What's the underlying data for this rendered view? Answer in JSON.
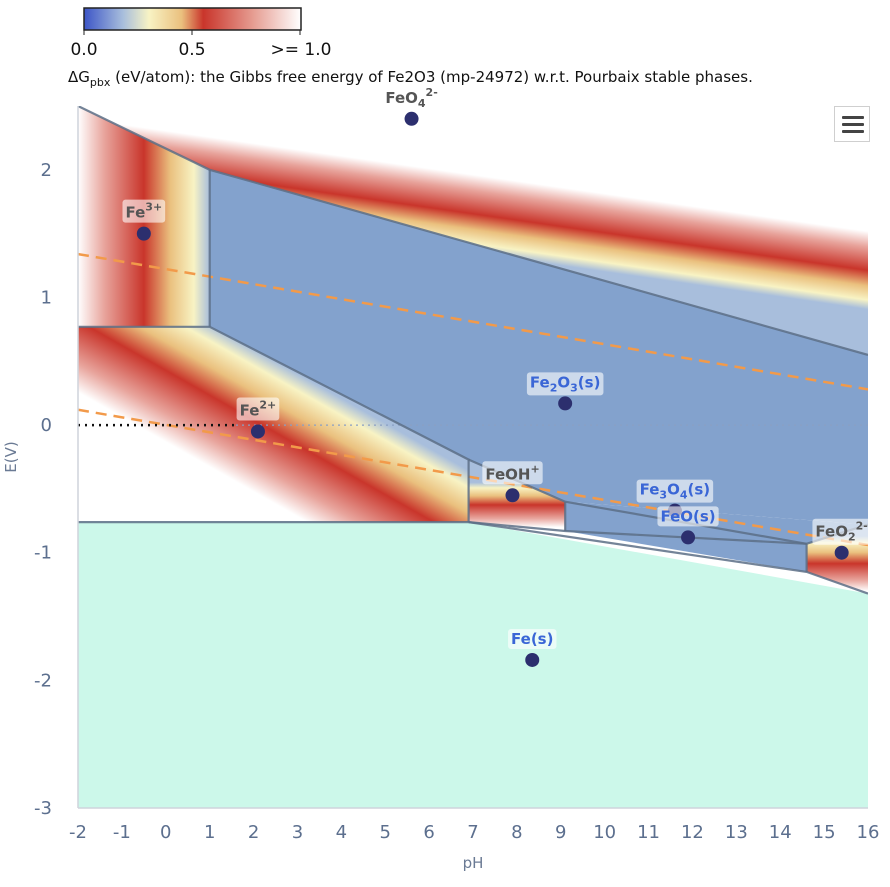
{
  "colorbar": {
    "ticks": [
      "0.0",
      "0.5",
      ">= 1.0"
    ],
    "caption_prefix": "ΔG",
    "caption_sub": "pbx",
    "caption_rest": " (eV/atom): the Gibbs free energy of Fe2O3 (mp-24972) w.r.t. Pourbaix stable phases."
  },
  "colors": {
    "stable_region": "#7f9fcb",
    "fe_metal_region": "#ccf8ea",
    "boundary": "#5c6e86",
    "water_line": "#f29a4a",
    "marker": "#2c2f6e",
    "solid_label": "#3a66d6",
    "ion_label": "#555555"
  },
  "chart_data": {
    "type": "heatmap",
    "xlabel": "pH",
    "ylabel": "E(V)",
    "xlim": [
      -2,
      16
    ],
    "ylim": [
      -3,
      2.5
    ],
    "xticks": [
      -2,
      -1,
      0,
      1,
      2,
      3,
      4,
      5,
      6,
      7,
      8,
      9,
      10,
      11,
      12,
      13,
      14,
      15,
      16
    ],
    "yticks": [
      -3,
      -2,
      -1,
      0,
      1,
      2
    ],
    "colorbar_range": [
      0,
      1
    ],
    "domains": [
      {
        "name": "Fe3+",
        "base": "Fe",
        "sup": "3+",
        "sub": "",
        "solid": false,
        "label": [
          -0.5,
          1.5
        ],
        "vertices": [
          [
            -2,
            2.5
          ],
          [
            1,
            2.0
          ],
          [
            1,
            0.77
          ],
          [
            -2,
            0.77
          ]
        ]
      },
      {
        "name": "FeO4 2-",
        "base": "FeO",
        "sub": "4",
        "sup": "2-",
        "solid": false,
        "label": [
          5.6,
          2.4
        ],
        "vertices": [
          [
            -2,
            2.5
          ],
          [
            16,
            2.5
          ],
          [
            16,
            0.55
          ],
          [
            1,
            2.0
          ]
        ]
      },
      {
        "name": "Fe2O3(s)",
        "base": "Fe",
        "sub": "2",
        "rest": "O",
        "sub2": "3",
        "tail": "(s)",
        "solid": true,
        "label": [
          9.1,
          0.17
        ],
        "vertices": [
          [
            1,
            2.0
          ],
          [
            16,
            0.55
          ],
          [
            16,
            -0.78
          ],
          [
            9.1,
            -0.6
          ],
          [
            6.9,
            -0.27
          ],
          [
            1,
            0.77
          ]
        ]
      },
      {
        "name": "Fe2+",
        "base": "Fe",
        "sup": "2+",
        "sub": "",
        "solid": false,
        "label": [
          2.1,
          -0.05
        ],
        "vertices": [
          [
            -2,
            0.77
          ],
          [
            1,
            0.77
          ],
          [
            6.9,
            -0.27
          ],
          [
            6.9,
            -0.76
          ],
          [
            -2,
            -0.76
          ]
        ]
      },
      {
        "name": "FeOH+",
        "base": "FeOH",
        "sup": "+",
        "sub": "",
        "solid": false,
        "label": [
          7.9,
          -0.55
        ],
        "vertices": [
          [
            6.9,
            -0.27
          ],
          [
            9.1,
            -0.6
          ],
          [
            9.1,
            -0.83
          ],
          [
            6.9,
            -0.76
          ]
        ]
      },
      {
        "name": "Fe3O4(s)",
        "base": "Fe",
        "sub": "3",
        "rest": "O",
        "sub2": "4",
        "tail": "(s)",
        "solid": true,
        "label": [
          11.6,
          -0.67
        ],
        "vertices": [
          [
            9.1,
            -0.6
          ],
          [
            16,
            -0.78
          ],
          [
            14.6,
            -0.93
          ],
          [
            9.1,
            -0.83
          ]
        ]
      },
      {
        "name": "FeO(s)",
        "base": "FeO(s)",
        "sup": "",
        "sub": "",
        "solid": true,
        "label": [
          11.9,
          -0.88
        ],
        "vertices": [
          [
            9.1,
            -0.83
          ],
          [
            14.6,
            -0.93
          ],
          [
            14.6,
            -1.15
          ],
          [
            9.1,
            -0.83
          ]
        ]
      },
      {
        "name": "FeO2 2-",
        "base": "FeO",
        "sub": "2",
        "sup": "2-",
        "solid": false,
        "label": [
          15.4,
          -1.0
        ],
        "vertices": [
          [
            14.6,
            -0.93
          ],
          [
            16,
            -0.78
          ],
          [
            16,
            -1.32
          ],
          [
            14.6,
            -1.15
          ]
        ]
      },
      {
        "name": "Fe(s)",
        "base": "Fe(s)",
        "sup": "",
        "sub": "",
        "solid": true,
        "label": [
          8.35,
          -1.84
        ],
        "vertices": [
          [
            -2,
            -0.76
          ],
          [
            6.9,
            -0.76
          ],
          [
            16,
            -1.32
          ],
          [
            16,
            -3.0
          ],
          [
            -2,
            -3.0
          ]
        ]
      }
    ],
    "boundaries": [
      [
        [
          -2,
          2.5
        ],
        [
          1,
          2.0
        ],
        [
          16,
          0.55
        ]
      ],
      [
        [
          1,
          2.0
        ],
        [
          1,
          0.77
        ]
      ],
      [
        [
          -2,
          0.77
        ],
        [
          1,
          0.77
        ],
        [
          6.9,
          -0.27
        ],
        [
          6.9,
          -0.76
        ]
      ],
      [
        [
          -2,
          -0.76
        ],
        [
          6.9,
          -0.76
        ],
        [
          14.6,
          -1.15
        ],
        [
          16,
          -1.32
        ]
      ],
      [
        [
          6.9,
          -0.27
        ],
        [
          9.1,
          -0.6
        ],
        [
          14.6,
          -0.93
        ],
        [
          16,
          -0.78
        ]
      ],
      [
        [
          9.1,
          -0.6
        ],
        [
          9.1,
          -0.83
        ]
      ],
      [
        [
          6.9,
          -0.76
        ],
        [
          9.1,
          -0.83
        ],
        [
          14.6,
          -0.93
        ]
      ],
      [
        [
          14.6,
          -0.93
        ],
        [
          14.6,
          -1.15
        ]
      ]
    ],
    "water_lines": [
      {
        "ph": [
          -2,
          16
        ],
        "e": [
          1.34,
          0.28
        ]
      },
      {
        "ph": [
          -2,
          16
        ],
        "e": [
          0.12,
          -0.94
        ]
      }
    ],
    "zero_reference": {
      "ph": [
        -2,
        1.6
      ],
      "e": [
        0,
        0
      ]
    }
  }
}
